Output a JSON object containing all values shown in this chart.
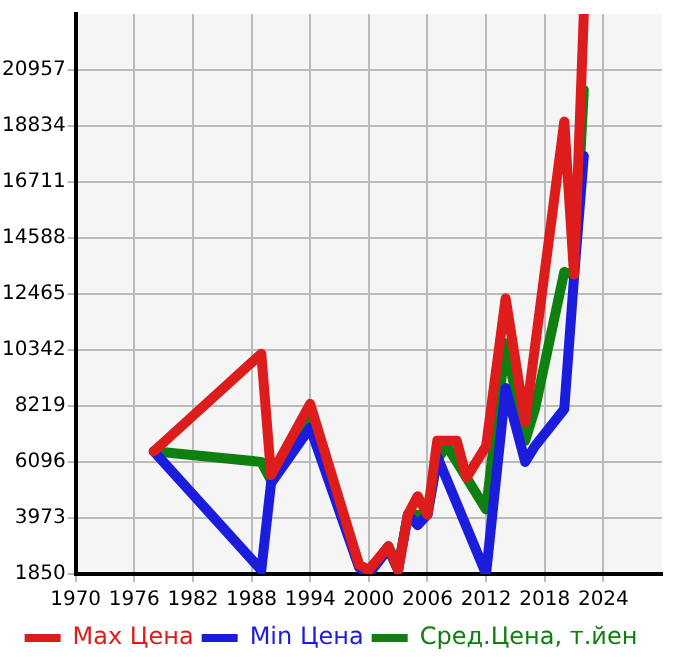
{
  "chart_data": {
    "type": "line",
    "xlim": [
      1970,
      2030
    ],
    "xticks": [
      1970,
      1976,
      1982,
      1988,
      1994,
      2000,
      2006,
      2012,
      2018,
      2024
    ],
    "ylim": [
      1850,
      23080
    ],
    "yticks": [
      1850,
      3973,
      6096,
      8219,
      10342,
      12465,
      14588,
      16711,
      18834,
      20957
    ],
    "grid": true,
    "legend": "bottom",
    "series": [
      {
        "name": "Max Цена",
        "color": "#dd1c1c",
        "x": [
          1978,
          1989,
          1990,
          1994,
          1999,
          2000,
          2002,
          2003,
          2004,
          2005,
          2006,
          2007,
          2009,
          2010,
          2012,
          2014,
          2016,
          2020,
          2021,
          2022
        ],
        "values": [
          6500,
          10200,
          5600,
          8300,
          2200,
          2000,
          2900,
          2000,
          4100,
          4800,
          4100,
          6900,
          6900,
          5500,
          6700,
          12300,
          7600,
          19000,
          13200,
          23080
        ]
      },
      {
        "name": "Min Цена",
        "color": "#1c1cdd",
        "x": [
          1978,
          1989,
          1990,
          1994,
          1999,
          2000,
          2002,
          2003,
          2004,
          2005,
          2006,
          2007,
          2012,
          2014,
          2016,
          2017,
          2020,
          2021,
          2022
        ],
        "values": [
          6500,
          2000,
          5300,
          7400,
          2100,
          1850,
          2800,
          2000,
          4100,
          3700,
          4100,
          6300,
          1850,
          8900,
          6100,
          6700,
          8100,
          13100,
          17700
        ]
      },
      {
        "name": "Сред.Цена, т.йен",
        "color": "#0f7f0f",
        "x": [
          1978,
          1989,
          1990,
          1994,
          1999,
          2000,
          2002,
          2003,
          2004,
          2006,
          2007,
          2008,
          2012,
          2014,
          2016,
          2017,
          2020,
          2021,
          2022
        ],
        "values": [
          6500,
          6100,
          5400,
          8000,
          2200,
          1900,
          2900,
          2100,
          4100,
          4100,
          6200,
          6700,
          4300,
          10600,
          6900,
          8100,
          13300,
          13200,
          20200
        ]
      }
    ]
  }
}
